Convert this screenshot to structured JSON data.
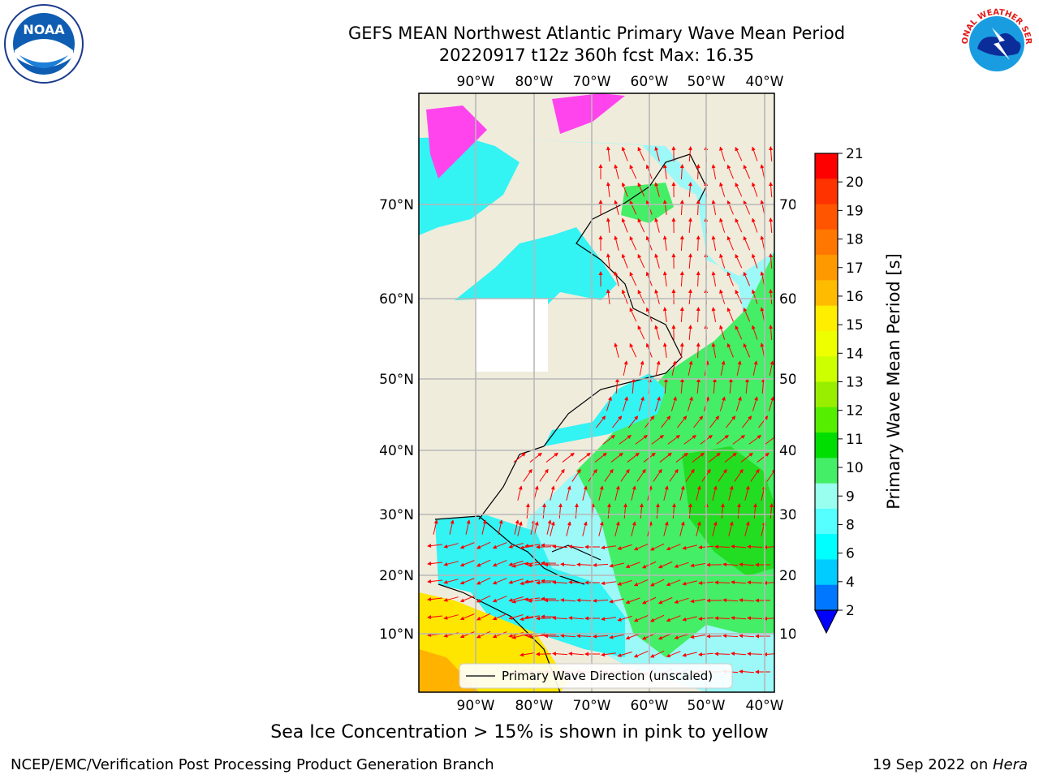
{
  "title_line1": "GEFS MEAN Northwest Atlantic Primary Wave Mean Period",
  "title_line2": "20220917 t12z 360h fcst   Max: 16.35",
  "bottom_note": "Sea Ice Concentration > 15% is shown in pink to yellow",
  "footer_left": "NCEP/EMC/Verification Post Processing Product Generation Branch",
  "footer_right_date": "19 Sep 2022 on ",
  "footer_right_host": "Hera",
  "logos": {
    "left": "NOAA",
    "right": "NATIONAL WEATHER SERVICE"
  },
  "map": {
    "lon_labels": [
      "90°W",
      "80°W",
      "70°W",
      "60°W",
      "50°W",
      "40°W"
    ],
    "lat_labels": [
      "70°N",
      "60°N",
      "50°N",
      "40°N",
      "30°N",
      "20°N",
      "10°N"
    ],
    "legend_text": "Primary Wave Direction (unscaled)",
    "colors": {
      "land": "#efecdc",
      "cyan": "#33f3f3",
      "light_cyan": "#9df8f8",
      "green": "#44ee44",
      "bright_green": "#22dd22",
      "yellow": "#ffe600",
      "arrow": "#ff0000",
      "ice": "#ff44ee"
    }
  },
  "colorbar": {
    "label": "Primary Wave Mean Period [s]",
    "ticks": [
      "21",
      "20",
      "19",
      "18",
      "17",
      "16",
      "15",
      "14",
      "13",
      "12",
      "11",
      "10",
      "9",
      "8",
      "6",
      "4",
      "2"
    ],
    "colors": [
      "#ff0000",
      "#ff3300",
      "#ff5500",
      "#ff7700",
      "#ff9900",
      "#ffbb00",
      "#ffee00",
      "#eeff00",
      "#ccff00",
      "#99ee00",
      "#55ee00",
      "#00dd00",
      "#44ee66",
      "#99ffee",
      "#55ffff",
      "#00ffff",
      "#00ccff",
      "#0077ff"
    ],
    "extend_color": "#0000ff"
  }
}
